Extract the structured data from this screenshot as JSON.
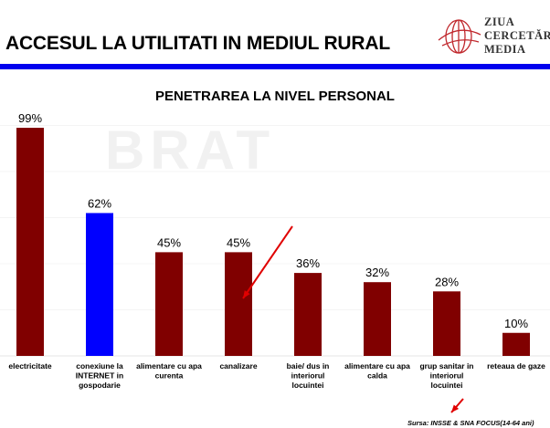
{
  "header": {
    "title": "ACCESUL LA UTILITATI IN MEDIUL RURAL",
    "logo_lines": [
      "ZIUA",
      "CERCETĂRII",
      "MEDIA"
    ]
  },
  "watermark": "BRAT",
  "source": "Sursa: INSSE & SNA FOCUS(14-64 ani)",
  "colors": {
    "bar": "#800000",
    "highlight": "#0000ff",
    "header_rule": "#0000ee",
    "arrow": "#e00000"
  },
  "chart_data": {
    "type": "bar",
    "title": "PENETRAREA LA NIVEL PERSONAL",
    "categories": [
      [
        "electricitate"
      ],
      [
        "conexiune la",
        "INTERNET in",
        "gospodarie"
      ],
      [
        "alimentare cu apa",
        "curenta"
      ],
      [
        "canalizare"
      ],
      [
        "baie/ dus in",
        "interiorul",
        "locuintei"
      ],
      [
        "alimentare cu apa",
        "calda"
      ],
      [
        "grup sanitar in",
        "interiorul",
        "locuintei"
      ],
      [
        "reteaua de gaze"
      ]
    ],
    "values": [
      99,
      62,
      45,
      45,
      36,
      32,
      28,
      10
    ],
    "labels": [
      "99%",
      "62%",
      "45%",
      "45%",
      "36%",
      "32%",
      "28%",
      "10%"
    ],
    "highlighted_index": 1,
    "ylim": [
      0,
      100
    ],
    "grid": false,
    "legend": "none"
  }
}
